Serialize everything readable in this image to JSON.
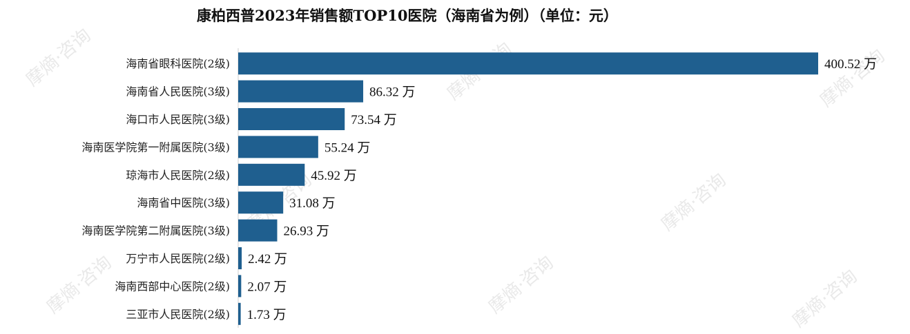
{
  "watermark": "摩熵·咨询",
  "chart_data": {
    "type": "bar",
    "orientation": "horizontal",
    "title": "康柏西普2023年销售额TOP10医院（海南省为例）（单位：元）",
    "xlabel": "",
    "ylabel": "",
    "value_suffix": " 万",
    "color": "#1f5f8f",
    "xlim": [
      0,
      400.52
    ],
    "grid": false,
    "legend": "none",
    "categories": [
      "海南省眼科医院(2级)",
      "海南省人民医院(3级)",
      "海口市人民医院(3级)",
      "海南医学院第一附属医院(3级)",
      "琼海市人民医院(2级)",
      "海南省中医院(3级)",
      "海南医学院第二附属医院(3级)",
      "万宁市人民医院(2级)",
      "海南西部中心医院(2级)",
      "三亚市人民医院(2级)"
    ],
    "values": [
      400.52,
      86.32,
      73.54,
      55.24,
      45.92,
      31.08,
      26.93,
      2.42,
      2.07,
      1.73
    ],
    "value_labels": [
      "400.52 万",
      "86.32 万",
      "73.54 万",
      "55.24 万",
      "45.92 万",
      "31.08 万",
      "26.93 万",
      "2.42 万",
      "2.07 万",
      "1.73 万"
    ]
  }
}
